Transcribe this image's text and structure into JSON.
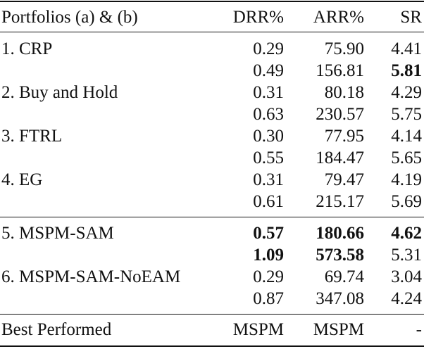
{
  "table": {
    "header": [
      "Portfolios (a) & (b)",
      "DRR%",
      "ARR%",
      "SR"
    ],
    "groups": [
      [
        {
          "cells": [
            "1. CRP",
            "0.29",
            "75.90",
            "4.41"
          ],
          "bold": []
        },
        {
          "cells": [
            null,
            "0.49",
            "156.81",
            "5.81"
          ],
          "bold": [
            3
          ]
        },
        {
          "cells": [
            "2. Buy and Hold",
            "0.31",
            "80.18",
            "4.29"
          ],
          "bold": []
        },
        {
          "cells": [
            null,
            "0.63",
            "230.57",
            "5.75"
          ],
          "bold": []
        },
        {
          "cells": [
            "3. FTRL",
            "0.30",
            "77.95",
            "4.14"
          ],
          "bold": []
        },
        {
          "cells": [
            null,
            "0.55",
            "184.47",
            "5.65"
          ],
          "bold": []
        },
        {
          "cells": [
            "4. EG",
            "0.31",
            "79.47",
            "4.19"
          ],
          "bold": []
        },
        {
          "cells": [
            null,
            "0.61",
            "215.17",
            "5.69"
          ],
          "bold": []
        }
      ],
      [
        {
          "cells": [
            "5. MSPM-SAM",
            "0.57",
            "180.66",
            "4.62"
          ],
          "bold": [
            1,
            2,
            3
          ]
        },
        {
          "cells": [
            null,
            "1.09",
            "573.58",
            "5.31"
          ],
          "bold": [
            1,
            2
          ]
        },
        {
          "cells": [
            "6. MSPM-SAM-NoEAM",
            "0.29",
            "69.74",
            "3.04"
          ],
          "bold": []
        },
        {
          "cells": [
            null,
            "0.87",
            "347.08",
            "4.24"
          ],
          "bold": []
        }
      ]
    ],
    "footer": [
      "Best Performed",
      "MSPM",
      "MSPM",
      "-"
    ]
  }
}
